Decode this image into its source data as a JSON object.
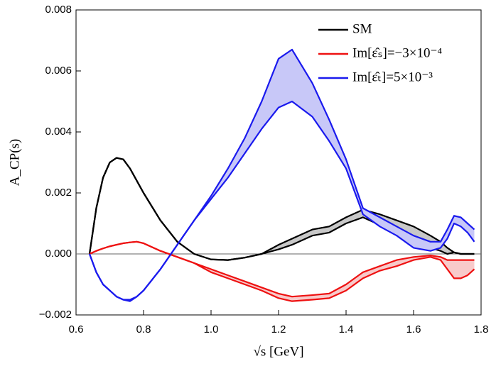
{
  "chart_data": {
    "type": "band-line",
    "xlabel": "√s [GeV]",
    "ylabel": "A_CP(s)",
    "xlim": [
      0.6,
      1.8
    ],
    "ylim": [
      -0.002,
      0.008
    ],
    "xticks": [
      0.6,
      0.8,
      {
        "value": 1,
        "label": "1.0"
      },
      1.2,
      1.4,
      1.6,
      1.8
    ],
    "yticks": [
      {
        "value": -0.002,
        "label": "−0.002"
      },
      {
        "value": 0,
        "label": "0.000"
      },
      0.002,
      0.004,
      0.006,
      0.008
    ],
    "zero_line": true,
    "legend": "upper right",
    "x": [
      0.64,
      0.66,
      0.68,
      0.7,
      0.72,
      0.74,
      0.76,
      0.78,
      0.8,
      0.85,
      0.9,
      0.95,
      1.0,
      1.05,
      1.1,
      1.15,
      1.2,
      1.24,
      1.3,
      1.35,
      1.4,
      1.45,
      1.5,
      1.55,
      1.6,
      1.65,
      1.68,
      1.7,
      1.72,
      1.74,
      1.76,
      1.78
    ],
    "series": [
      {
        "name": "SM",
        "color": "#000000",
        "fill": "#c8c8c8",
        "values": [
          0,
          0.0015,
          0.0025,
          0.003,
          0.00315,
          0.0031,
          0.0028,
          0.0024,
          0.002,
          0.0011,
          0.0004,
          0,
          -0.00018,
          -0.0002,
          -0.00012,
          0,
          0.00015,
          0.0003,
          0.0006,
          0.0007,
          0.001,
          0.0012,
          0.00095,
          0.00075,
          0.0005,
          0.0002,
          0.0001,
          0,
          5e-05,
          0,
          0,
          0
        ],
        "upper": [
          0,
          0.0015,
          0.0025,
          0.003,
          0.00315,
          0.0031,
          0.0028,
          0.0024,
          0.002,
          0.0011,
          0.0004,
          0,
          -0.00018,
          -0.0002,
          -0.00012,
          0,
          0.0003,
          0.0005,
          0.0008,
          0.0009,
          0.0012,
          0.00145,
          0.0013,
          0.0011,
          0.0009,
          0.0006,
          0.0004,
          0.0002,
          5e-05,
          0,
          0,
          0
        ]
      },
      {
        "name": "Im[ε̂ₛ]=−3×10⁻⁴",
        "color": "#ee1111",
        "fill": "#f8caca",
        "values": [
          0,
          0.0001,
          0.00018,
          0.00025,
          0.0003,
          0.00035,
          0.00038,
          0.0004,
          0.00035,
          0.0001,
          -0.0001,
          -0.0003,
          -0.0006,
          -0.0008,
          -0.001,
          -0.0012,
          -0.00145,
          -0.00155,
          -0.0015,
          -0.00145,
          -0.0012,
          -0.0008,
          -0.00055,
          -0.0004,
          -0.0002,
          -0.0001,
          -0.0002,
          -0.0005,
          -0.0008,
          -0.0008,
          -0.0007,
          -0.0005
        ],
        "upper": [
          0,
          0.0001,
          0.00018,
          0.00025,
          0.0003,
          0.00035,
          0.00038,
          0.0004,
          0.00035,
          0.0001,
          -0.0001,
          -0.0003,
          -0.0005,
          -0.0007,
          -0.0009,
          -0.0011,
          -0.0013,
          -0.0014,
          -0.00135,
          -0.0013,
          -0.001,
          -0.0006,
          -0.0004,
          -0.0002,
          -0.0001,
          -5e-05,
          -0.0001,
          -0.0002,
          -0.0002,
          -0.0002,
          -0.0002,
          -0.0002
        ]
      },
      {
        "name": "Im[ε̂ₜ]=5×10⁻³",
        "color": "#1a1aee",
        "fill": "#c8c8f8",
        "values": [
          0,
          -0.0006,
          -0.001,
          -0.0012,
          -0.0014,
          -0.0015,
          -0.00155,
          -0.0014,
          -0.0012,
          -0.0005,
          0.0003,
          0.0011,
          0.0018,
          0.0025,
          0.0033,
          0.0041,
          0.0048,
          0.005,
          0.0045,
          0.0037,
          0.0028,
          0.0013,
          0.0009,
          0.0006,
          0.0002,
          0.0001,
          0.0002,
          0.0005,
          0.001,
          0.0009,
          0.0007,
          0.0004
        ],
        "upper": [
          0,
          -0.0006,
          -0.001,
          -0.0012,
          -0.0014,
          -0.0015,
          -0.0015,
          -0.0014,
          -0.0012,
          -0.0005,
          0.0003,
          0.0011,
          0.0019,
          0.0028,
          0.0038,
          0.005,
          0.0064,
          0.0067,
          0.0056,
          0.0044,
          0.0031,
          0.0015,
          0.0012,
          0.0009,
          0.0006,
          0.0004,
          0.0004,
          0.0008,
          0.00125,
          0.0012,
          0.001,
          0.0008
        ]
      }
    ]
  }
}
